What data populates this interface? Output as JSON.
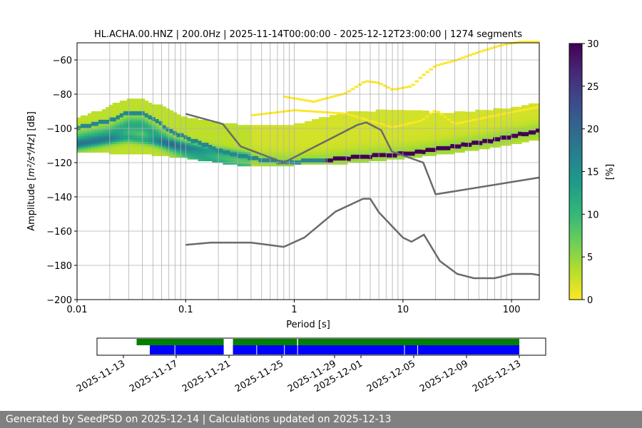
{
  "colors": {
    "curve": "#6a6a6a",
    "grid": "#b0b0b0",
    "avail_green": "#008000",
    "avail_blue": "#0000ff",
    "footer_bg": "#808080",
    "viridis": [
      "#fde725",
      "#b5de2b",
      "#6ece58",
      "#35b779",
      "#1f9e89",
      "#26828e",
      "#31688e",
      "#3e4989",
      "#482878",
      "#440154"
    ]
  },
  "chart_data": {
    "type": "heatmap",
    "title": "HL.ACHA.00.HNZ | 200.0Hz | 2025-11-14T00:00:00 - 2025-12-12T23:00:00 | 1274 segments",
    "xlabel": "Period [s]",
    "ylabel_prefix": "Amplitude [",
    "ylabel_unit": "m²/s⁴/Hz",
    "ylabel_suffix": "] [dB]",
    "xscale": "log",
    "xlim": [
      0.01,
      180
    ],
    "ylim": [
      -200,
      -50
    ],
    "x_tick_values": [
      0.01,
      0.1,
      1,
      10,
      100
    ],
    "x_tick_labels": [
      "0.01",
      "0.1",
      "1",
      "10",
      "100"
    ],
    "y_tick_values": [
      -200,
      -180,
      -160,
      -140,
      -120,
      -100,
      -80,
      -60
    ],
    "y_tick_labels": [
      "−200",
      "−180",
      "−160",
      "−140",
      "−120",
      "−100",
      "−80",
      "−60"
    ],
    "grid": true,
    "colorbar": {
      "label": "[%]",
      "range": [
        0,
        30
      ],
      "tick_values": [
        0,
        5,
        10,
        15,
        20,
        25,
        30
      ],
      "tick_labels": [
        "0",
        "5",
        "10",
        "15",
        "20",
        "25",
        "30"
      ]
    },
    "psd_mode": [
      [
        0.01,
        -100
      ],
      [
        0.02,
        -96
      ],
      [
        0.03,
        -91
      ],
      [
        0.04,
        -91
      ],
      [
        0.05,
        -95
      ],
      [
        0.07,
        -101
      ],
      [
        0.1,
        -106
      ],
      [
        0.15,
        -110
      ],
      [
        0.2,
        -113
      ],
      [
        0.3,
        -116
      ],
      [
        0.5,
        -119
      ],
      [
        0.8,
        -120
      ],
      [
        1,
        -120
      ],
      [
        2,
        -119
      ],
      [
        4,
        -117
      ],
      [
        8,
        -116
      ],
      [
        15,
        -114
      ],
      [
        30,
        -111
      ],
      [
        60,
        -108
      ],
      [
        100,
        -105
      ],
      [
        180,
        -102
      ]
    ],
    "psd_band_lower": [
      [
        0.01,
        -113
      ],
      [
        0.02,
        -114
      ],
      [
        0.05,
        -115
      ],
      [
        0.1,
        -117
      ],
      [
        0.3,
        -121
      ],
      [
        0.5,
        -122
      ],
      [
        0.8,
        -122
      ],
      [
        1,
        -121
      ],
      [
        2,
        -121
      ],
      [
        5,
        -119
      ],
      [
        10,
        -117
      ],
      [
        30,
        -114
      ],
      [
        100,
        -109
      ],
      [
        180,
        -106
      ]
    ],
    "psd_band_upper": [
      [
        0.01,
        -95
      ],
      [
        0.02,
        -88
      ],
      [
        0.03,
        -83
      ],
      [
        0.04,
        -83
      ],
      [
        0.05,
        -86
      ],
      [
        0.07,
        -90
      ],
      [
        0.1,
        -94
      ],
      [
        0.2,
        -98
      ],
      [
        0.5,
        -100
      ],
      [
        1,
        -98
      ],
      [
        3,
        -92
      ],
      [
        10,
        -90
      ],
      [
        30,
        -92
      ],
      [
        100,
        -89
      ],
      [
        180,
        -86
      ]
    ],
    "secondary_band": [
      [
        0.01,
        -110
      ],
      [
        0.02,
        -107
      ],
      [
        0.03,
        -106
      ],
      [
        0.05,
        -108
      ],
      [
        0.1,
        -111
      ],
      [
        0.2,
        -114
      ],
      [
        0.4,
        -117
      ]
    ],
    "outlier_upper": [
      [
        0.8,
        -82
      ],
      [
        1.5,
        -85
      ],
      [
        3,
        -80
      ],
      [
        4.5,
        -73
      ],
      [
        6,
        -74
      ],
      [
        8,
        -78
      ],
      [
        12,
        -76
      ],
      [
        15,
        -70
      ],
      [
        20,
        -64
      ],
      [
        30,
        -61
      ],
      [
        50,
        -56
      ],
      [
        80,
        -52
      ],
      [
        120,
        -50
      ],
      [
        180,
        -50
      ]
    ],
    "outlier_mid": [
      [
        0.4,
        -93
      ],
      [
        1,
        -90
      ],
      [
        3,
        -92
      ],
      [
        8,
        -100
      ],
      [
        15,
        -96
      ],
      [
        20,
        -90
      ],
      [
        30,
        -98
      ],
      [
        60,
        -94
      ],
      [
        180,
        -88
      ]
    ],
    "nhnm": [
      [
        0.1,
        -91.5
      ],
      [
        0.22,
        -97.4
      ],
      [
        0.32,
        -110.5
      ],
      [
        0.8,
        -120
      ],
      [
        3.8,
        -98
      ],
      [
        4.6,
        -96.5
      ],
      [
        6.3,
        -101
      ],
      [
        7.9,
        -113.5
      ],
      [
        15.4,
        -120
      ],
      [
        20,
        -138.5
      ],
      [
        180,
        -128.7
      ]
    ],
    "nlnm": [
      [
        0.1,
        -168
      ],
      [
        0.17,
        -166.7
      ],
      [
        0.4,
        -166.7
      ],
      [
        0.8,
        -169.2
      ],
      [
        1.24,
        -163.7
      ],
      [
        2.4,
        -148.6
      ],
      [
        4.3,
        -141.1
      ],
      [
        5,
        -141.1
      ],
      [
        6,
        -149
      ],
      [
        10,
        -163.8
      ],
      [
        12,
        -166.2
      ],
      [
        15.6,
        -162.1
      ],
      [
        21.9,
        -177.5
      ],
      [
        31.6,
        -185
      ],
      [
        45,
        -187.5
      ],
      [
        70,
        -187.5
      ],
      [
        101,
        -185
      ],
      [
        154,
        -185
      ],
      [
        180,
        -185.7
      ]
    ],
    "availability": {
      "date_range": [
        "2025-11-11",
        "2025-12-15"
      ],
      "tick_labels": [
        "2025-11-13",
        "2025-11-17",
        "2025-11-21",
        "2025-11-25",
        "2025-11-29",
        "2025-12-01",
        "2025-12-05",
        "2025-12-09",
        "2025-12-13"
      ],
      "tick_dates": [
        "2025-11-13",
        "2025-11-17",
        "2025-11-21",
        "2025-11-25",
        "2025-11-29",
        "2025-12-01",
        "2025-12-05",
        "2025-12-09",
        "2025-12-13"
      ],
      "green_segments": [
        [
          "2025-11-14",
          "2025-11-20.6"
        ],
        [
          "2025-11-21.3",
          "2025-12-13"
        ]
      ],
      "blue_segments": [
        [
          "2025-11-15",
          "2025-11-20.6"
        ],
        [
          "2025-11-21.3",
          "2025-12-13"
        ]
      ],
      "blue_gaps": [
        "2025-11-16.9",
        "2025-11-23.1",
        "2025-11-25.2",
        "2025-11-26.2",
        "2025-12-04.3",
        "2025-12-05.3"
      ],
      "green_gaps": [
        "2025-11-26.2"
      ]
    }
  },
  "footer": {
    "text": "Generated by SeedPSD on 2025-12-14 | Calculations updated on 2025-12-13"
  }
}
